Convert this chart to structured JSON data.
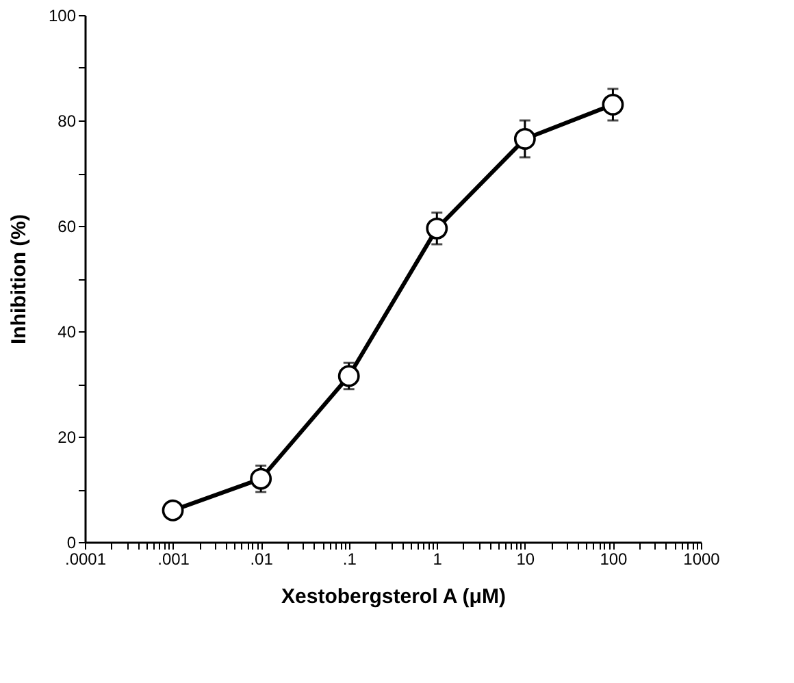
{
  "chart_data": {
    "type": "line",
    "xlabel": "Xestobergsterol  A  (μM)",
    "ylabel": "Inhibition  (%)",
    "x": [
      0.001,
      0.01,
      0.1,
      1,
      10,
      100
    ],
    "series": [
      {
        "color": "#000000",
        "values": [
          6,
          12,
          31.5,
          59.5,
          76.5,
          83
        ],
        "errors": [
          null,
          2.5,
          2.5,
          3,
          3.5,
          3
        ]
      }
    ],
    "log": "x",
    "xlim": [
      0.0001,
      1000
    ],
    "xticks": [
      {
        "value": 0.0001,
        "label": ".0001"
      },
      {
        "value": 0.001,
        "label": ".001"
      },
      {
        "value": 0.01,
        "label": ".01"
      },
      {
        "value": 0.1,
        "label": ".1"
      },
      1,
      10,
      100,
      1000,
      {
        "value": 0.0002,
        "label": null
      },
      {
        "value": 0.0003,
        "label": null
      },
      {
        "value": 0.0004,
        "label": null
      },
      {
        "value": 0.0005,
        "label": null
      },
      {
        "value": 0.0006,
        "label": null
      },
      {
        "value": 0.0007,
        "label": null
      },
      {
        "value": 0.0008,
        "label": null
      },
      {
        "value": 0.0009,
        "label": null
      },
      {
        "value": 0.002,
        "label": null
      },
      {
        "value": 0.003,
        "label": null
      },
      {
        "value": 0.004,
        "label": null
      },
      {
        "value": 0.005,
        "label": null
      },
      {
        "value": 0.006,
        "label": null
      },
      {
        "value": 0.007,
        "label": null
      },
      {
        "value": 0.008,
        "label": null
      },
      {
        "value": 0.009,
        "label": null
      },
      {
        "value": 0.02,
        "label": null
      },
      {
        "value": 0.03,
        "label": null
      },
      {
        "value": 0.04,
        "label": null
      },
      {
        "value": 0.05,
        "label": null
      },
      {
        "value": 0.06,
        "label": null
      },
      {
        "value": 0.07,
        "label": null
      },
      {
        "value": 0.08,
        "label": null
      },
      {
        "value": 0.09,
        "label": null
      },
      {
        "value": 0.2,
        "label": null
      },
      {
        "value": 0.3,
        "label": null
      },
      {
        "value": 0.4,
        "label": null
      },
      {
        "value": 0.5,
        "label": null
      },
      {
        "value": 0.6,
        "label": null
      },
      {
        "value": 0.7,
        "label": null
      },
      {
        "value": 0.8,
        "label": null
      },
      {
        "value": 0.9,
        "label": null
      },
      {
        "value": 2,
        "label": null
      },
      {
        "value": 3,
        "label": null
      },
      {
        "value": 4,
        "label": null
      },
      {
        "value": 5,
        "label": null
      },
      {
        "value": 6,
        "label": null
      },
      {
        "value": 7,
        "label": null
      },
      {
        "value": 8,
        "label": null
      },
      {
        "value": 9,
        "label": null
      },
      {
        "value": 20,
        "label": null
      },
      {
        "value": 30,
        "label": null
      },
      {
        "value": 40,
        "label": null
      },
      {
        "value": 50,
        "label": null
      },
      {
        "value": 60,
        "label": null
      },
      {
        "value": 70,
        "label": null
      },
      {
        "value": 80,
        "label": null
      },
      {
        "value": 90,
        "label": null
      },
      {
        "value": 200,
        "label": null
      },
      {
        "value": 300,
        "label": null
      },
      {
        "value": 400,
        "label": null
      },
      {
        "value": 500,
        "label": null
      },
      {
        "value": 600,
        "label": null
      },
      {
        "value": 700,
        "label": null
      },
      {
        "value": 800,
        "label": null
      },
      {
        "value": 900,
        "label": null
      }
    ],
    "ylim": [
      0,
      100
    ],
    "yticks": [
      0,
      20,
      40,
      60,
      80,
      100,
      {
        "value": 10,
        "label": null
      },
      {
        "value": 30,
        "label": null
      },
      {
        "value": 50,
        "label": null
      },
      {
        "value": 70,
        "label": null
      },
      {
        "value": 90,
        "label": null
      }
    ],
    "grid": false,
    "marker": "circle",
    "line_style": "solid"
  }
}
